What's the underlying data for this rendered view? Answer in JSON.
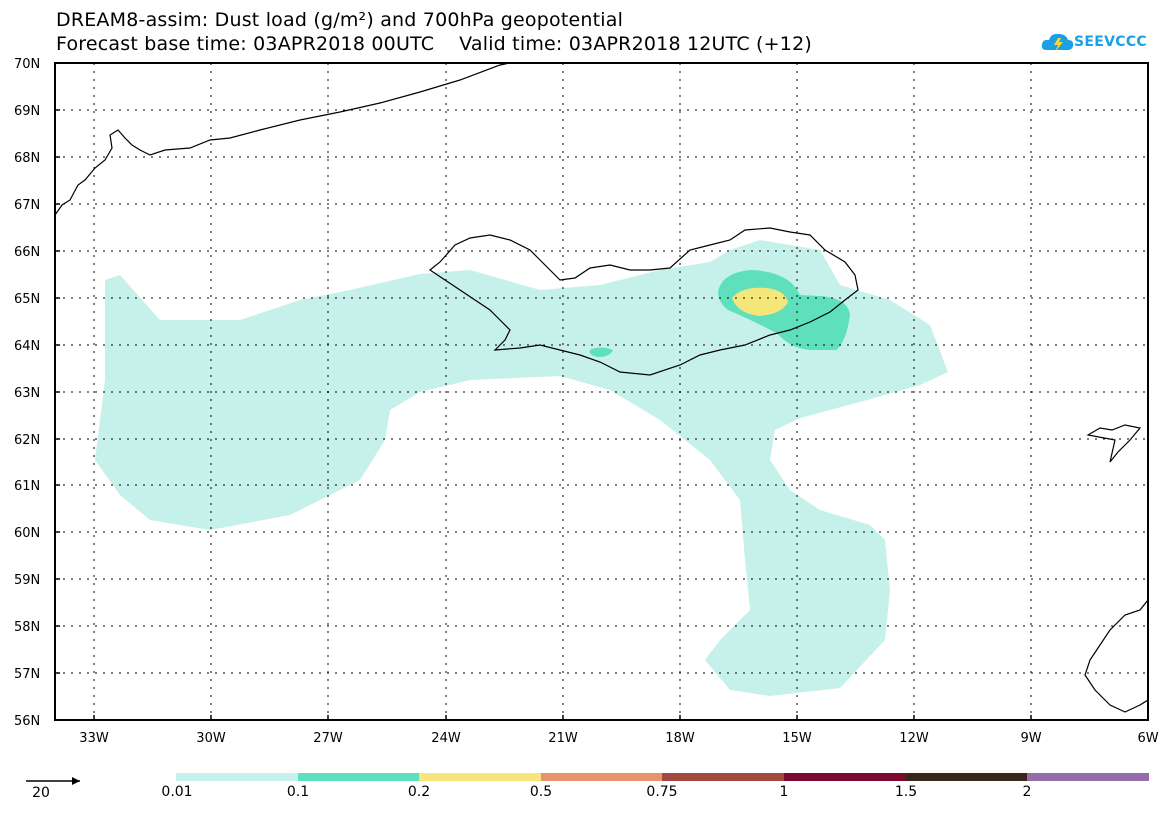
{
  "title": {
    "line1": "DREAM8-assim: Dust load (g/m²) and 700hPa geopotential",
    "line2": "Forecast base time: 03APR2018 00UTC    Valid time: 03APR2018 12UTC (+12)"
  },
  "logo": {
    "text": "SEEVCCC",
    "icon": "cloud-icon",
    "color": "#1aa0e6"
  },
  "map": {
    "lat_labels": [
      "70N",
      "69N",
      "68N",
      "67N",
      "66N",
      "65N",
      "64N",
      "63N",
      "62N",
      "61N",
      "60N",
      "59N",
      "58N",
      "57N",
      "56N"
    ],
    "lon_labels": [
      "33W",
      "30W",
      "27W",
      "24W",
      "21W",
      "18W",
      "15W",
      "12W",
      "9W",
      "6W"
    ],
    "lat_range": [
      56,
      70
    ],
    "lon_range": [
      -34,
      -6
    ],
    "grid": "dotted"
  },
  "legend": {
    "vector_reference": "20",
    "colors": [
      "#c6f0ea",
      "#5de0bb",
      "#f5e67a",
      "#e9926b",
      "#a4493f",
      "#7a0b2f",
      "#3a261b",
      "#946ea8"
    ],
    "labels": [
      "0.01",
      "0.1",
      "0.2",
      "0.5",
      "0.75",
      "1",
      "1.5",
      "2"
    ]
  }
}
